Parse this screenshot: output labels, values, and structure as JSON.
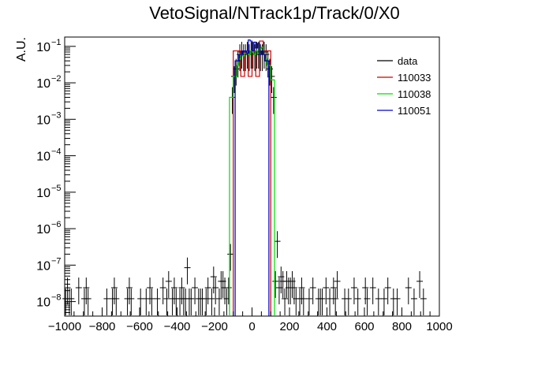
{
  "chart_data": {
    "type": "histogram",
    "title": "VetoSignal/NTrack1p/Track/0/X0",
    "xlabel": "",
    "ylabel": "A.U.",
    "xlim": [
      -1000,
      1000
    ],
    "ylim": [
      4e-09,
      0.18
    ],
    "yscale": "log",
    "x_ticks": [
      -1000,
      -800,
      -600,
      -400,
      -200,
      0,
      200,
      400,
      600,
      800,
      1000
    ],
    "y_ticks": [
      {
        "value": 1e-08,
        "base": "10",
        "exp": "−8"
      },
      {
        "value": 1e-07,
        "base": "10",
        "exp": "−7"
      },
      {
        "value": 1e-06,
        "base": "10",
        "exp": "−6"
      },
      {
        "value": 1e-05,
        "base": "10",
        "exp": "−5"
      },
      {
        "value": 0.0001,
        "base": "10",
        "exp": "−4"
      },
      {
        "value": 0.001,
        "base": "10",
        "exp": "−3"
      },
      {
        "value": 0.01,
        "base": "10",
        "exp": "−2"
      },
      {
        "value": 0.1,
        "base": "10",
        "exp": "−1"
      }
    ],
    "legend_position": "top-right",
    "series": [
      {
        "name": "data",
        "style": "points",
        "color": "#000000",
        "x": [
          -995,
          -985,
          -975,
          -965,
          -925,
          -895,
          -885,
          -875,
          -775,
          -745,
          -735,
          -725,
          -665,
          -655,
          -645,
          -595,
          -565,
          -545,
          -535,
          -505,
          -475,
          -455,
          -445,
          -425,
          -415,
          -405,
          -385,
          -375,
          -365,
          -355,
          -345,
          -335,
          -325,
          -305,
          -285,
          -275,
          -265,
          -245,
          -235,
          -215,
          -205,
          -195,
          -175,
          -165,
          -155,
          -145,
          -135,
          -125,
          -115,
          -105,
          -95,
          -85,
          -75,
          -65,
          -55,
          -45,
          -35,
          -25,
          -15,
          -5,
          5,
          15,
          25,
          35,
          45,
          55,
          65,
          75,
          85,
          95,
          105,
          115,
          125,
          135,
          145,
          155,
          165,
          175,
          185,
          195,
          205,
          215,
          225,
          235,
          255,
          265,
          275,
          305,
          325,
          355,
          365,
          375,
          395,
          415,
          435,
          445,
          455,
          495,
          515,
          545,
          565,
          605,
          615,
          645,
          675,
          705,
          725,
          755,
          775,
          835,
          865,
          895,
          915
        ],
        "y": [
          1.2e-08,
          2.4e-08,
          1.2e-08,
          1.2e-08,
          2.4e-08,
          1.2e-08,
          2.4e-08,
          1.2e-08,
          1.2e-08,
          1.2e-08,
          2.4e-08,
          1.2e-08,
          1.2e-08,
          2.4e-08,
          1.2e-08,
          1.2e-08,
          1.2e-08,
          2.4e-08,
          1.2e-08,
          1.2e-08,
          2.4e-08,
          1.2e-08,
          3.6e-08,
          1.2e-08,
          2.4e-08,
          1.2e-08,
          1.2e-08,
          2.4e-08,
          1.2e-08,
          1.2e-08,
          8.5e-08,
          1.2e-08,
          1.2e-08,
          2.4e-08,
          1.2e-08,
          1.2e-08,
          1.2e-08,
          1.2e-08,
          2.4e-08,
          1.2e-08,
          4.8e-08,
          2.4e-08,
          1.2e-08,
          3.6e-08,
          3.6e-08,
          2.4e-08,
          1.2e-08,
          2.4e-08,
          2e-07,
          0.004,
          0.015,
          0.024,
          0.04,
          0.06,
          0.07,
          0.06,
          0.06,
          0.07,
          0.06,
          0.07,
          0.07,
          0.06,
          0.07,
          0.07,
          0.06,
          0.06,
          0.07,
          0.06,
          0.04,
          0.024,
          0.015,
          0.004,
          3.6e-08,
          4.5e-07,
          2.4e-08,
          4.8e-08,
          3.6e-08,
          1.2e-08,
          3.6e-08,
          2.4e-08,
          2.4e-08,
          3.6e-08,
          2.4e-08,
          1.2e-08,
          1.2e-08,
          2.4e-08,
          1.2e-08,
          1.2e-08,
          2.4e-08,
          1.2e-08,
          1.2e-08,
          1.2e-08,
          2.4e-08,
          1.2e-08,
          2.4e-08,
          1.2e-08,
          3.6e-08,
          1.2e-08,
          1.2e-08,
          2.4e-08,
          1.2e-08,
          2.4e-08,
          1.2e-08,
          2.4e-08,
          1.2e-08,
          1.2e-08,
          2.4e-08,
          1.2e-08,
          1.2e-08,
          2.4e-08,
          1.2e-08,
          3.6e-08,
          1.2e-08
        ]
      },
      {
        "name": "110033",
        "style": "step",
        "color": "#cc0000",
        "edges": [
          -100,
          -60,
          -40,
          -20,
          0,
          20,
          40,
          60,
          100
        ],
        "values": [
          0.075,
          0.015,
          0.075,
          0.015,
          0.075,
          0.015,
          0.14,
          0.075
        ]
      },
      {
        "name": "110038",
        "style": "step",
        "color": "#00dd00",
        "edges": [
          -120,
          -100,
          -80,
          -70,
          -60,
          -50,
          -40,
          -30,
          -20,
          -10,
          0,
          10,
          20,
          30,
          40,
          50,
          60,
          70,
          80,
          100,
          120
        ],
        "values": [
          0.004,
          0.015,
          0.03,
          0.045,
          0.06,
          0.055,
          0.065,
          0.07,
          0.06,
          0.075,
          0.07,
          0.06,
          0.075,
          0.065,
          0.085,
          0.095,
          0.06,
          0.045,
          0.03,
          0.012
        ]
      },
      {
        "name": "110051",
        "style": "step",
        "color": "#0000cc",
        "edges": [
          -90,
          -70,
          -50,
          -40,
          -30,
          -20,
          -10,
          0,
          10,
          20,
          30,
          40,
          50,
          60,
          70,
          90
        ],
        "values": [
          0.04,
          0.06,
          0.075,
          0.075,
          0.065,
          0.15,
          0.14,
          0.075,
          0.13,
          0.09,
          0.12,
          0.06,
          0.075,
          0.06,
          0.04
        ]
      }
    ]
  }
}
